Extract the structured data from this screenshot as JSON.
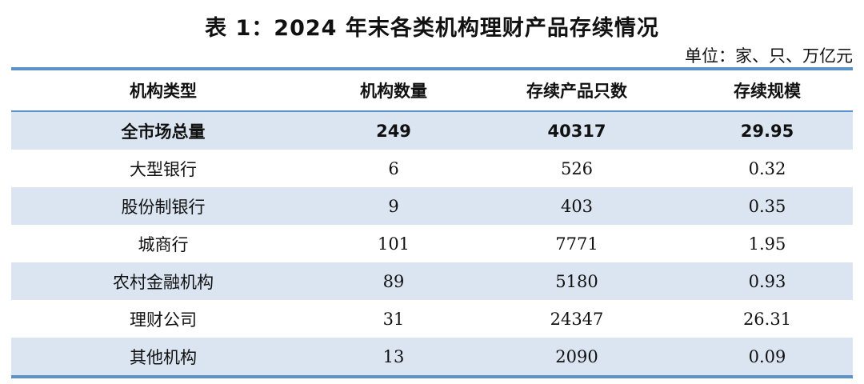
{
  "title": "表 1：2024 年末各类机构理财产品存续情况",
  "unit": "单位：家、只、万亿元",
  "colors": {
    "rule": "#5b93c9",
    "shade": "#dbe5f1"
  },
  "table": {
    "headers": [
      "机构类型",
      "机构数量",
      "存续产品只数",
      "存续规模"
    ],
    "total": [
      "全市场总量",
      "249",
      "40317",
      "29.95"
    ],
    "rows": [
      [
        "大型银行",
        "6",
        "526",
        "0.32"
      ],
      [
        "股份制银行",
        "9",
        "403",
        "0.35"
      ],
      [
        "城商行",
        "101",
        "7771",
        "1.95"
      ],
      [
        "农村金融机构",
        "89",
        "5180",
        "0.93"
      ],
      [
        "理财公司",
        "31",
        "24347",
        "26.31"
      ],
      [
        "其他机构",
        "13",
        "2090",
        "0.09"
      ]
    ]
  }
}
